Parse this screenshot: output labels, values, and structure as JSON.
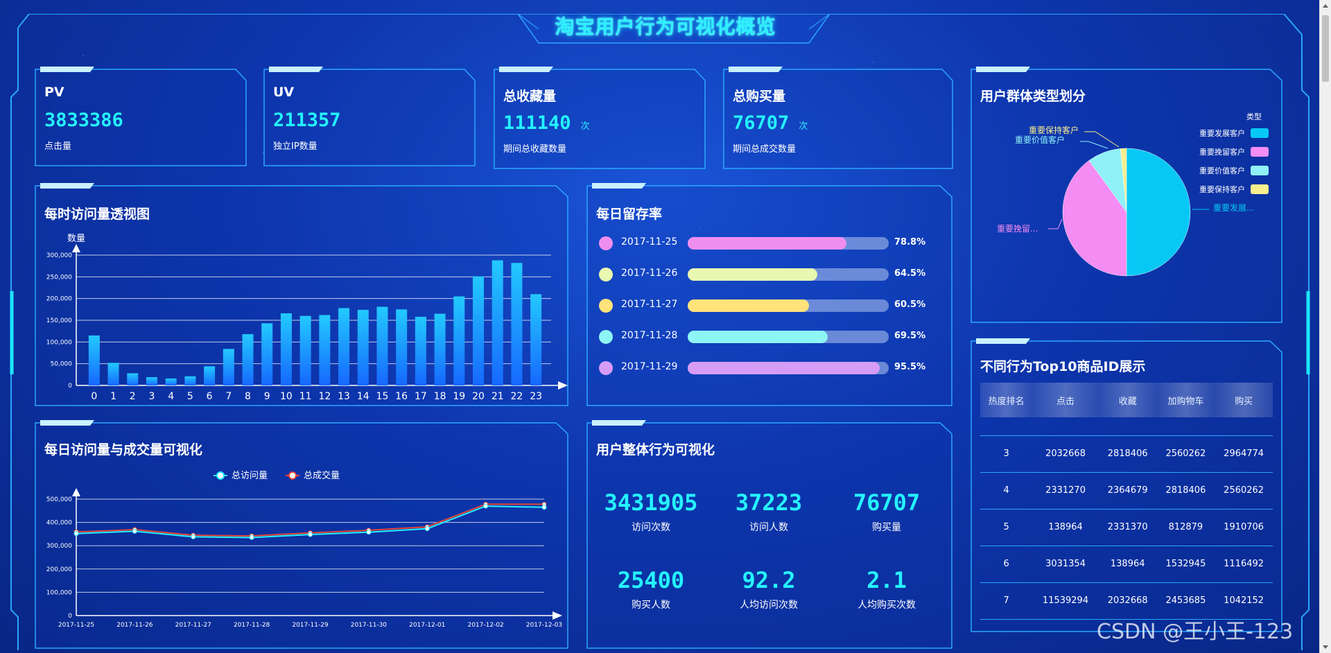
{
  "page_title": "淘宝用户行为可视化概览",
  "kpis": [
    {
      "title": "PV",
      "value": "3833386",
      "unit": "",
      "sub": "点击量"
    },
    {
      "title": "UV",
      "value": "211357",
      "unit": "",
      "sub": "独立IP数量"
    },
    {
      "title": "总收藏量",
      "value": "111140",
      "unit": "次",
      "sub": "期间总收藏数量"
    },
    {
      "title": "总购买量",
      "value": "76707",
      "unit": "次",
      "sub": "期间总成交数量"
    }
  ],
  "hourly": {
    "title": "每时访问量透视图",
    "ylabel": "数量",
    "yticks": [
      "300,000",
      "250,000",
      "200,000",
      "150,000",
      "100,000",
      "50,000",
      "0"
    ]
  },
  "retention": {
    "title": "每日留存率",
    "rows": [
      {
        "date": "2017-11-25",
        "value": 78.8,
        "label": "78.8%",
        "color": "#f08ef0"
      },
      {
        "date": "2017-11-26",
        "value": 64.5,
        "label": "64.5%",
        "color": "#e8f8b0"
      },
      {
        "date": "2017-11-27",
        "value": 60.5,
        "label": "60.5%",
        "color": "#ffe27a"
      },
      {
        "date": "2017-11-28",
        "value": 69.5,
        "label": "69.5%",
        "color": "#8ef5f5"
      },
      {
        "date": "2017-11-29",
        "value": 95.5,
        "label": "95.5%",
        "color": "#d79cf5"
      }
    ]
  },
  "daily": {
    "title": "每日访问量与成交量可视化",
    "legend": [
      "总访问量",
      "总成交量"
    ],
    "yticks": [
      "500,000",
      "400,000",
      "300,000",
      "200,000",
      "100,000",
      "0"
    ]
  },
  "overall": {
    "title": "用户整体行为可视化",
    "stats": [
      {
        "value": "3431905",
        "label": "访问次数"
      },
      {
        "value": "37223",
        "label": "访问人数"
      },
      {
        "value": "76707",
        "label": "购买量"
      },
      {
        "value": "25400",
        "label": "购买人数"
      },
      {
        "value": "92.2",
        "label": "人均访问次数"
      },
      {
        "value": "2.1",
        "label": "人均购买次数"
      }
    ]
  },
  "segments": {
    "title": "用户群体类型划分",
    "legend_title": "类型",
    "outside_labels": [
      "重要保持客户",
      "重要价值客户",
      "重要挽留...",
      "重要发展..."
    ]
  },
  "top10": {
    "title": "不同行为Top10商品ID展示",
    "headers": [
      "热度排名",
      "点击",
      "收藏",
      "加购物车",
      "购买"
    ],
    "rows": [
      [
        "3",
        "2032668",
        "2818406",
        "2560262",
        "2964774"
      ],
      [
        "4",
        "2331270",
        "2364679",
        "2818406",
        "2560262"
      ],
      [
        "5",
        "138964",
        "2331370",
        "812879",
        "1910706"
      ],
      [
        "6",
        "3031354",
        "138964",
        "1532945",
        "1116492"
      ],
      [
        "7",
        "11539294",
        "2032668",
        "2453685",
        "1042152"
      ]
    ]
  },
  "watermark": "CSDN @王小王-123",
  "colors": {
    "accent": "#25f3ff",
    "bar": "#1a9cff",
    "visit_line": "#27f0ff",
    "deal_line": "#e4473a"
  },
  "chart_data": [
    {
      "type": "bar",
      "title": "每时访问量透视图",
      "ylabel": "数量",
      "categories": [
        "0",
        "1",
        "2",
        "3",
        "4",
        "5",
        "6",
        "7",
        "8",
        "9",
        "10",
        "11",
        "12",
        "13",
        "14",
        "15",
        "16",
        "17",
        "18",
        "19",
        "20",
        "21",
        "22",
        "23"
      ],
      "values": [
        115000,
        52000,
        28000,
        19000,
        16000,
        21000,
        44000,
        84000,
        118000,
        143000,
        166000,
        160000,
        162000,
        178000,
        174000,
        181000,
        175000,
        158000,
        165000,
        205000,
        251000,
        288000,
        282000,
        210000
      ],
      "ylim": [
        0,
        300000
      ],
      "grid": true
    },
    {
      "type": "line",
      "title": "每日访问量与成交量可视化",
      "x": [
        "2017-11-25",
        "2017-11-26",
        "2017-11-27",
        "2017-11-28",
        "2017-11-29",
        "2017-11-30",
        "2017-12-01",
        "2017-12-02",
        "2017-12-03"
      ],
      "series": [
        {
          "name": "总访问量",
          "values": [
            352000,
            362000,
            338000,
            335000,
            348000,
            358000,
            373000,
            470000,
            465000
          ]
        },
        {
          "name": "总成交量",
          "values": [
            359000,
            369000,
            345000,
            342000,
            355000,
            366000,
            381000,
            478000,
            478000
          ]
        }
      ],
      "ylim": [
        0,
        500000
      ],
      "grid": true,
      "legend": "top"
    },
    {
      "type": "pie",
      "title": "用户群体类型划分",
      "legend_title": "类型",
      "legend": "top-right",
      "labels": [
        "重要发展客户",
        "重要挽留客户",
        "重要价值客户",
        "重要保持客户"
      ],
      "values": [
        50,
        40,
        8.5,
        1.5
      ],
      "colors": [
        "#07c8f5",
        "#f38cf3",
        "#8ff1f7",
        "#f7ef8e"
      ]
    }
  ]
}
